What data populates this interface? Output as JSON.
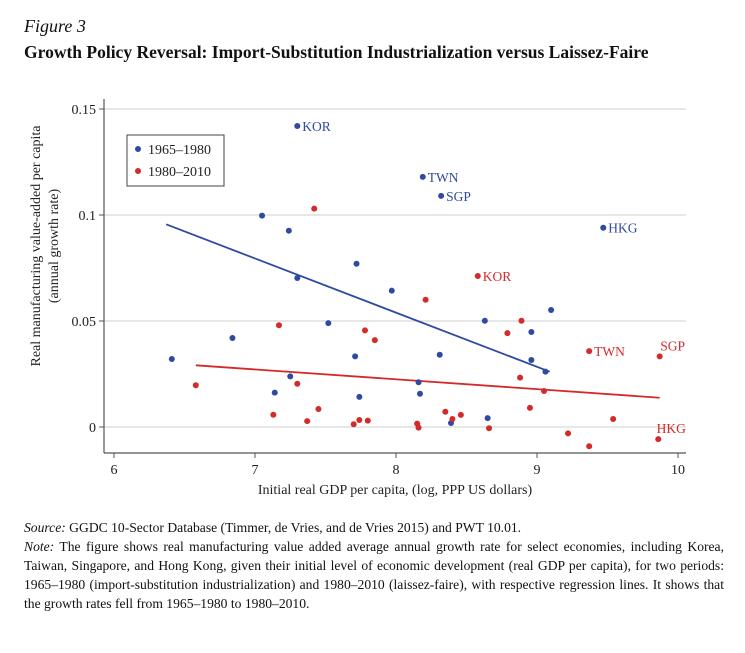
{
  "figure_label": "Figure 3",
  "title": "Growth Policy Reversal: Import-Substitution Industrialization versus Laissez-Faire",
  "caption": {
    "source_label": "Source:",
    "source_text": " GGDC 10-Sector Database (Timmer, de Vries, and de Vries 2015) and PWT 10.01.",
    "note_label": "Note:",
    "note_text": " The figure shows real manufacturing value added average annual growth rate for select economies, including Korea, Taiwan, Singapore, and Hong Kong, given their initial level of economic development (real GDP per capita), for two periods: 1965–1980 (import-substitution industrialization) and 1980–2010 (laissez-faire), with respective regression lines. It shows that the growth rates fell from 1965–1980 to 1980–2010."
  },
  "chart_data": {
    "type": "scatter",
    "xlabel": "Initial real GDP per capita, (log, PPP US dollars)",
    "ylabel": [
      "Real manufacturing value-added per capita",
      "(annual growth rate)"
    ],
    "xlim": [
      6,
      10
    ],
    "ylim": [
      -0.012,
      0.155
    ],
    "xticks": [
      6,
      7,
      8,
      9,
      10
    ],
    "xtick_labels": [
      "6",
      "7",
      "8",
      "9",
      "10"
    ],
    "yticks": [
      0,
      0.05,
      0.1,
      0.15
    ],
    "ytick_labels": [
      "0",
      "0.05",
      "0.1",
      "0.15"
    ],
    "grid": "horizontal",
    "legend_placement": "top-left",
    "series": [
      {
        "name": "1965–1980",
        "color": "#2f4aa0",
        "points": [
          {
            "x": 7.3,
            "y": 0.142,
            "label": "KOR",
            "label_pos": "right"
          },
          {
            "x": 8.19,
            "y": 0.118,
            "label": "TWN",
            "label_pos": "right"
          },
          {
            "x": 8.32,
            "y": 0.109,
            "label": "SGP",
            "label_pos": "right"
          },
          {
            "x": 9.47,
            "y": 0.094,
            "label": "HKG",
            "label_pos": "right"
          },
          {
            "x": 7.05,
            "y": 0.0997
          },
          {
            "x": 7.24,
            "y": 0.0926
          },
          {
            "x": 7.72,
            "y": 0.077
          },
          {
            "x": 7.3,
            "y": 0.0703
          },
          {
            "x": 7.97,
            "y": 0.0643
          },
          {
            "x": 7.52,
            "y": 0.049
          },
          {
            "x": 6.84,
            "y": 0.042
          },
          {
            "x": 6.41,
            "y": 0.0321
          },
          {
            "x": 7.71,
            "y": 0.0333
          },
          {
            "x": 7.25,
            "y": 0.0239
          },
          {
            "x": 7.14,
            "y": 0.0162
          },
          {
            "x": 7.74,
            "y": 0.0142
          },
          {
            "x": 9.1,
            "y": 0.0552
          },
          {
            "x": 8.63,
            "y": 0.0501
          },
          {
            "x": 8.96,
            "y": 0.0448
          },
          {
            "x": 8.31,
            "y": 0.0341
          },
          {
            "x": 8.96,
            "y": 0.0316
          },
          {
            "x": 9.06,
            "y": 0.0261
          },
          {
            "x": 8.16,
            "y": 0.0211
          },
          {
            "x": 8.17,
            "y": 0.0157
          },
          {
            "x": 8.39,
            "y": 0.0019
          },
          {
            "x": 8.65,
            "y": 0.0042
          }
        ],
        "fit_line": [
          [
            6.37,
            0.0956
          ],
          [
            9.09,
            0.0261
          ]
        ]
      },
      {
        "name": "1980–2010",
        "color": "#d42a2a",
        "points": [
          {
            "x": 8.58,
            "y": 0.0712,
            "label": "KOR",
            "label_pos": "right"
          },
          {
            "x": 9.37,
            "y": 0.0358,
            "label": "TWN",
            "label_pos": "right"
          },
          {
            "x": 9.87,
            "y": 0.0333,
            "label": "SGP",
            "label_pos": "above"
          },
          {
            "x": 9.86,
            "y": -0.0057,
            "label": "HKG",
            "label_pos": "above"
          },
          {
            "x": 7.42,
            "y": 0.103
          },
          {
            "x": 7.17,
            "y": 0.048
          },
          {
            "x": 7.78,
            "y": 0.0456
          },
          {
            "x": 7.85,
            "y": 0.041
          },
          {
            "x": 7.3,
            "y": 0.0204
          },
          {
            "x": 6.58,
            "y": 0.0197
          },
          {
            "x": 7.45,
            "y": 0.0085
          },
          {
            "x": 7.13,
            "y": 0.0058
          },
          {
            "x": 7.37,
            "y": 0.0028
          },
          {
            "x": 7.7,
            "y": 0.0013
          },
          {
            "x": 7.74,
            "y": 0.0033
          },
          {
            "x": 7.8,
            "y": 0.003
          },
          {
            "x": 8.21,
            "y": 0.06
          },
          {
            "x": 8.89,
            "y": 0.0501
          },
          {
            "x": 8.79,
            "y": 0.0443
          },
          {
            "x": 8.88,
            "y": 0.0233
          },
          {
            "x": 9.05,
            "y": 0.017
          },
          {
            "x": 8.95,
            "y": 0.009
          },
          {
            "x": 8.35,
            "y": 0.0072
          },
          {
            "x": 8.46,
            "y": 0.0057
          },
          {
            "x": 8.4,
            "y": 0.0038
          },
          {
            "x": 8.15,
            "y": 0.0016
          },
          {
            "x": 8.16,
            "y": -0.0003
          },
          {
            "x": 8.66,
            "y": -0.0006
          },
          {
            "x": 9.54,
            "y": 0.0038
          },
          {
            "x": 9.22,
            "y": -0.003
          },
          {
            "x": 9.37,
            "y": -0.0091
          }
        ],
        "fit_line": [
          [
            6.58,
            0.0291
          ],
          [
            9.87,
            0.0138
          ]
        ]
      }
    ]
  }
}
